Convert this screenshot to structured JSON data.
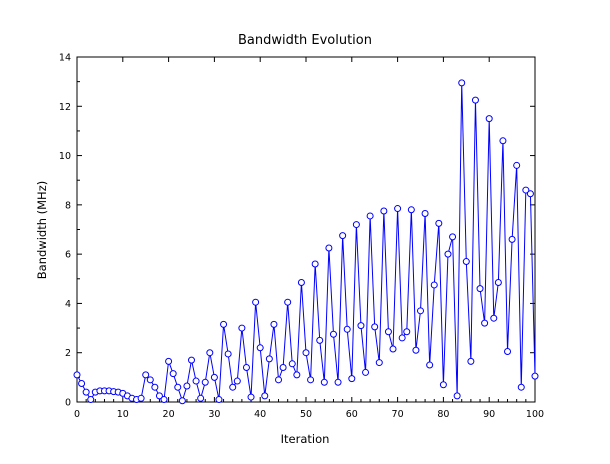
{
  "chart_data": {
    "type": "line",
    "title": "Bandwidth Evolution",
    "xlabel": "Iteration",
    "ylabel": "Bandwidth (MHz)",
    "xlim": [
      0,
      100
    ],
    "ylim": [
      0,
      14
    ],
    "xticks": [
      "0",
      "10",
      "20",
      "30",
      "40",
      "50",
      "60",
      "70",
      "80",
      "90",
      "100"
    ],
    "yticks": [
      "0",
      "2",
      "4",
      "6",
      "8",
      "10",
      "12",
      "14"
    ],
    "grid": false,
    "series": [
      {
        "color": "#0000ff",
        "marker": "circle-open",
        "x": [
          0,
          1,
          2,
          3,
          4,
          5,
          6,
          7,
          8,
          9,
          10,
          11,
          12,
          13,
          14,
          15,
          16,
          17,
          18,
          19,
          20,
          21,
          22,
          23,
          24,
          25,
          26,
          27,
          28,
          29,
          30,
          31,
          32,
          33,
          34,
          35,
          36,
          37,
          38,
          39,
          40,
          41,
          42,
          43,
          44,
          45,
          46,
          47,
          48,
          49,
          50,
          51,
          52,
          53,
          54,
          55,
          56,
          57,
          58,
          59,
          60,
          61,
          62,
          63,
          64,
          65,
          66,
          67,
          68,
          69,
          70,
          71,
          72,
          73,
          74,
          75,
          76,
          77,
          78,
          79,
          80,
          81,
          82,
          83,
          84,
          85,
          86,
          87,
          88,
          89,
          90,
          91,
          92,
          93,
          94,
          95,
          96,
          97,
          98,
          99,
          100
        ],
        "values": [
          1.1,
          0.75,
          0.4,
          0.1,
          0.4,
          0.45,
          0.45,
          0.45,
          0.42,
          0.4,
          0.35,
          0.25,
          0.15,
          0.1,
          0.15,
          1.1,
          0.9,
          0.6,
          0.25,
          0.1,
          1.65,
          1.15,
          0.6,
          0.05,
          0.65,
          1.7,
          0.85,
          0.15,
          0.8,
          2.0,
          1.0,
          0.1,
          3.15,
          1.95,
          0.6,
          0.85,
          3.0,
          1.4,
          0.2,
          4.05,
          2.2,
          0.25,
          1.75,
          3.15,
          0.9,
          1.4,
          4.05,
          1.55,
          1.1,
          4.85,
          2.0,
          0.9,
          5.6,
          2.5,
          0.8,
          6.25,
          2.75,
          0.8,
          6.75,
          2.95,
          0.95,
          7.2,
          3.1,
          1.2,
          7.55,
          3.05,
          1.6,
          7.75,
          2.85,
          2.15,
          7.85,
          2.6,
          2.85,
          7.8,
          2.1,
          3.7,
          7.65,
          1.5,
          4.75,
          7.25,
          0.7,
          6.0,
          6.7,
          0.25,
          12.95,
          5.7,
          1.65,
          12.25,
          4.6,
          3.2,
          11.5,
          3.4,
          4.85,
          10.6,
          2.05,
          6.6,
          9.6,
          0.6,
          8.6,
          8.45,
          1.05
        ]
      }
    ]
  }
}
